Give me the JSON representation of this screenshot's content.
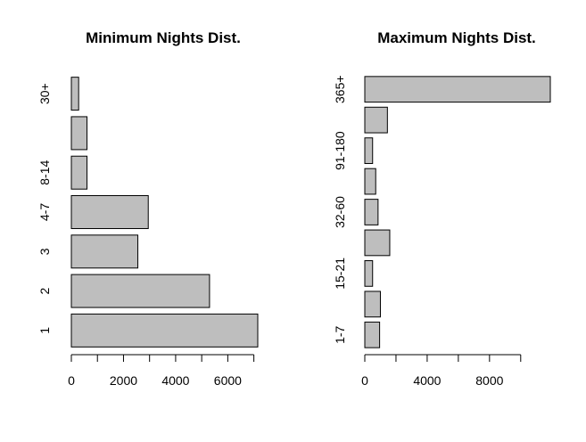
{
  "chart_data": [
    {
      "type": "bar",
      "orientation": "horizontal",
      "title": "Minimum Nights Dist.",
      "categories": [
        "1",
        "2",
        "3",
        "4-7",
        "8-14",
        "",
        "30+"
      ],
      "values": [
        7150,
        5300,
        2550,
        2950,
        600,
        600,
        280
      ],
      "xlim": [
        0,
        7150
      ],
      "xticks": [
        0,
        1000,
        2000,
        3000,
        4000,
        5000,
        6000,
        7000
      ],
      "xtick_labels": [
        "0",
        "",
        "2000",
        "",
        "4000",
        "",
        "6000",
        ""
      ],
      "xlabel": "",
      "ylabel": ""
    },
    {
      "type": "bar",
      "orientation": "horizontal",
      "title": "Maximum Nights Dist.",
      "categories": [
        "1-7",
        "",
        "15-21",
        "",
        "32-60",
        "",
        "91-180",
        "",
        "365+"
      ],
      "values": [
        950,
        1000,
        500,
        1600,
        850,
        700,
        500,
        1450,
        11900
      ],
      "xlim": [
        0,
        11900
      ],
      "xticks": [
        0,
        2000,
        4000,
        6000,
        8000,
        10000
      ],
      "xtick_labels": [
        "0",
        "",
        "4000",
        "",
        "8000",
        ""
      ],
      "xlabel": "",
      "ylabel": ""
    }
  ]
}
